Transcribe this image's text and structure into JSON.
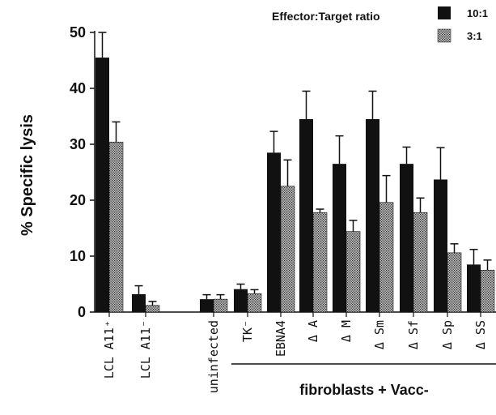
{
  "chart_data": {
    "type": "bar",
    "ylabel": "% Specific lysis",
    "ylim": [
      0,
      50
    ],
    "yticks": [
      0,
      10,
      20,
      30,
      40,
      50
    ],
    "legend": {
      "title": "Effector:Target ratio",
      "placement": "top-right"
    },
    "categories": [
      "LCL A11⁺",
      "LCL A11⁻",
      "",
      "uninfected",
      "TK⁻",
      "EBNA4",
      "Δ A",
      "Δ M",
      "Δ Sm",
      "Δ Sf",
      "Δ Sp",
      "Δ SS"
    ],
    "series": [
      {
        "name": "10:1",
        "color": "#111111",
        "values": [
          45.5,
          3.2,
          null,
          2.3,
          4.1,
          28.5,
          34.5,
          26.5,
          34.5,
          26.5,
          23.7,
          8.5
        ],
        "errors": [
          4.5,
          1.5,
          null,
          0.8,
          0.9,
          3.8,
          5.0,
          5.0,
          5.0,
          3.0,
          5.7,
          2.7
        ]
      },
      {
        "name": "3:1",
        "color": "#8a8a8a",
        "values": [
          30.4,
          1.2,
          null,
          2.3,
          3.3,
          22.5,
          17.8,
          14.4,
          19.6,
          17.8,
          10.6,
          7.5
        ],
        "errors": [
          3.6,
          0.7,
          null,
          0.8,
          0.7,
          4.7,
          0.6,
          2.0,
          4.8,
          2.6,
          1.6,
          1.8
        ]
      }
    ],
    "group_label": "fibroblasts + Vacc-"
  }
}
